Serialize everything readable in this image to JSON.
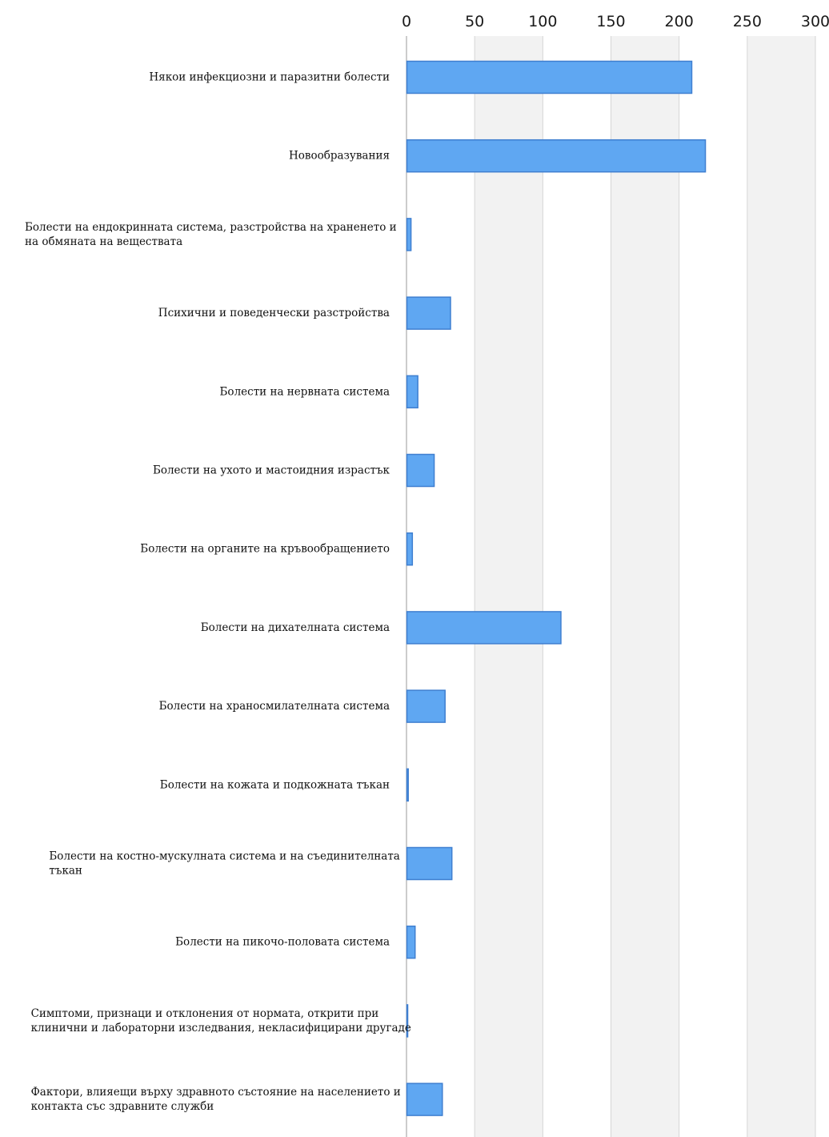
{
  "chart_data": {
    "type": "bar",
    "orientation": "horizontal",
    "xlim": [
      0,
      300
    ],
    "x_ticks": [
      "0",
      "50",
      "100",
      "150",
      "200",
      "250",
      "300"
    ],
    "x_axis_position": "top",
    "grid": "vertical, alternating shaded bands",
    "legend": "none",
    "categories": [
      [
        "Някои инфекциозни и паразитни болести"
      ],
      [
        "Новообразувания"
      ],
      [
        "Болести на ендокринната система, разстройства на храненето и",
        "на обмяната на веществата"
      ],
      [
        "Психични и поведенчески разстройства"
      ],
      [
        "Болести на нервната система"
      ],
      [
        "Болести на ухото и мастоидния израстък"
      ],
      [
        "Болести на органите на кръвообращението"
      ],
      [
        "Болести на дихателната система"
      ],
      [
        "Болести на храносмилателната система"
      ],
      [
        "Болести на кожата и подкожната тъкан"
      ],
      [
        "Болести на костно-мускулната система и на съединителната",
        "тъкан"
      ],
      [
        "Болести на пикочо-половата система"
      ],
      [
        "Симптоми, признаци и отклонения от нормата, открити при",
        "клинични и лабораторни изследвания, некласифицирани другаде"
      ],
      [
        "Фактори, влияещи върху здравното състояние на населението и",
        "контакта със здравните служби"
      ]
    ],
    "values": [
      209,
      219,
      3,
      32,
      8,
      20,
      4,
      113,
      28,
      1,
      33,
      6,
      0.5,
      26
    ],
    "colors": {
      "bar_fill": "#5fa7f2",
      "bar_stroke": "#3f7fd0",
      "band": "#f2f2f2",
      "grid": "#d6d6d6"
    }
  }
}
